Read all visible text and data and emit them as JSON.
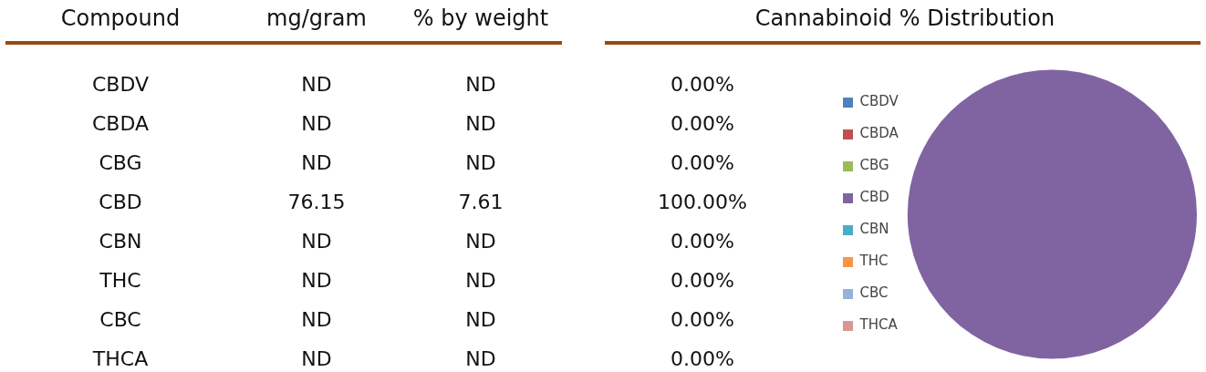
{
  "chart_data": [
    {
      "type": "other",
      "xlabel": "Compound",
      "categories": [
        "CBDV",
        "CBDA",
        "CBG",
        "CBD",
        "CBN",
        "THC",
        "CBC",
        "THCA"
      ],
      "series": [
        {
          "name": "mg/gram",
          "values": [
            null,
            null,
            null,
            76.15,
            null,
            null,
            null,
            null
          ],
          "value_labels": [
            "ND",
            "ND",
            "ND",
            "76.15",
            "ND",
            "ND",
            "ND",
            "ND"
          ]
        },
        {
          "name": "% by weight",
          "values": [
            null,
            null,
            null,
            7.61,
            null,
            null,
            null,
            null
          ],
          "value_labels": [
            "ND",
            "ND",
            "ND",
            "7.61",
            "ND",
            "ND",
            "ND",
            "ND"
          ]
        }
      ]
    },
    {
      "type": "pie",
      "title": "Cannabinoid % Distribution",
      "categories": [
        "CBDV",
        "CBDA",
        "CBG",
        "CBD",
        "CBN",
        "THC",
        "CBC",
        "THCA"
      ],
      "values": [
        0,
        0,
        0,
        100,
        0,
        0,
        0,
        0
      ],
      "value_labels": [
        "0.00%",
        "0.00%",
        "0.00%",
        "100.00%",
        "0.00%",
        "0.00%",
        "0.00%",
        "0.00%"
      ],
      "colors": [
        "#4f81bd",
        "#c0504d",
        "#9bbb59",
        "#8064a2",
        "#4bacc6",
        "#f79646",
        "#95b3d7",
        "#d99694"
      ],
      "legend": "left"
    }
  ]
}
